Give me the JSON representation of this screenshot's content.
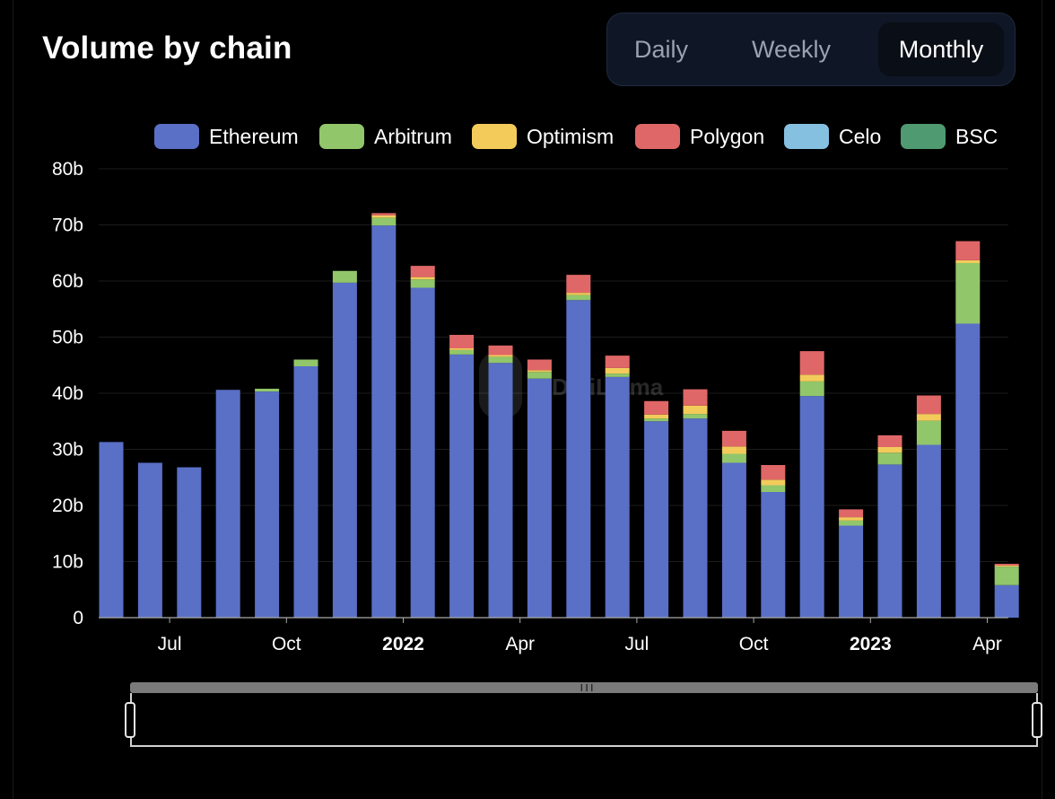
{
  "title": "Volume by chain",
  "toggle": {
    "options": [
      "Daily",
      "Weekly",
      "Monthly"
    ],
    "selected": "Monthly"
  },
  "watermark": "DefiLlama",
  "colors": {
    "background": "#000000",
    "grid": "#1c1c1c",
    "axis": "#aaaaaa"
  },
  "icons": {
    "slider_grip": "grip-lines-icon",
    "slider_handle": "drag-handle-icon"
  },
  "chart_data": {
    "type": "bar",
    "stacked": true,
    "title": "Volume by chain",
    "xlabel": "",
    "ylabel": "",
    "ylim": [
      0,
      80
    ],
    "y_unit": "b",
    "y_ticks": [
      "0",
      "10b",
      "20b",
      "30b",
      "40b",
      "50b",
      "60b",
      "70b",
      "80b"
    ],
    "x_ticks": [
      {
        "label": "Jul",
        "after_index": 1,
        "bold": false
      },
      {
        "label": "Oct",
        "after_index": 4,
        "bold": false
      },
      {
        "label": "2022",
        "after_index": 7,
        "bold": true
      },
      {
        "label": "Apr",
        "after_index": 10,
        "bold": false
      },
      {
        "label": "Jul",
        "after_index": 13,
        "bold": false
      },
      {
        "label": "Oct",
        "after_index": 16,
        "bold": false
      },
      {
        "label": "2023",
        "after_index": 19,
        "bold": true
      },
      {
        "label": "Apr",
        "after_index": 22,
        "bold": false
      }
    ],
    "categories": [
      "2021-05",
      "2021-06",
      "2021-07",
      "2021-08",
      "2021-09",
      "2021-10",
      "2021-11",
      "2021-12",
      "2022-01",
      "2022-02",
      "2022-03",
      "2022-04",
      "2022-05",
      "2022-06",
      "2022-07",
      "2022-08",
      "2022-09",
      "2022-10",
      "2022-11",
      "2022-12",
      "2023-01",
      "2023-02",
      "2023-03",
      "2023-04"
    ],
    "legend_position": "top-right",
    "grid": true,
    "series": [
      {
        "name": "Ethereum",
        "color": "#5a6fc6",
        "values": [
          31.3,
          27.6,
          26.8,
          40.6,
          40.3,
          44.8,
          59.7,
          69.9,
          58.8,
          46.9,
          45.4,
          42.6,
          56.6,
          42.9,
          35.0,
          35.5,
          27.6,
          22.4,
          39.5,
          16.4,
          27.3,
          30.8,
          52.4,
          5.8
        ]
      },
      {
        "name": "Arbitrum",
        "color": "#92c66a",
        "values": [
          0,
          0,
          0,
          0,
          0.5,
          1.2,
          2.1,
          1.4,
          1.5,
          0.8,
          1.1,
          1.2,
          0.9,
          0.6,
          0.5,
          0.8,
          1.6,
          1.2,
          2.6,
          0.9,
          2.1,
          4.3,
          10.8,
          3.3
        ]
      },
      {
        "name": "Optimism",
        "color": "#f3cb5b",
        "values": [
          0,
          0,
          0,
          0,
          0,
          0,
          0,
          0.4,
          0.4,
          0.3,
          0.3,
          0.3,
          0.4,
          1.0,
          0.7,
          1.5,
          1.3,
          1.0,
          1.2,
          0.6,
          1.0,
          1.2,
          0.5,
          0.2
        ]
      },
      {
        "name": "Polygon",
        "color": "#e06767",
        "values": [
          0,
          0,
          0,
          0,
          0,
          0,
          0,
          0.4,
          2.0,
          2.4,
          1.7,
          1.9,
          3.2,
          2.2,
          2.4,
          2.9,
          2.8,
          2.6,
          4.2,
          1.4,
          2.1,
          3.3,
          3.4,
          0.3
        ]
      },
      {
        "name": "Celo",
        "color": "#86c0e0",
        "values": [
          0,
          0,
          0,
          0,
          0,
          0,
          0,
          0,
          0,
          0,
          0,
          0,
          0,
          0,
          0,
          0,
          0,
          0,
          0,
          0,
          0,
          0,
          0,
          0
        ]
      },
      {
        "name": "BSC",
        "color": "#4f9a70",
        "values": [
          0,
          0,
          0,
          0,
          0,
          0,
          0,
          0,
          0,
          0,
          0,
          0,
          0,
          0,
          0,
          0,
          0,
          0,
          0,
          0,
          0,
          0,
          0,
          0
        ]
      }
    ]
  }
}
